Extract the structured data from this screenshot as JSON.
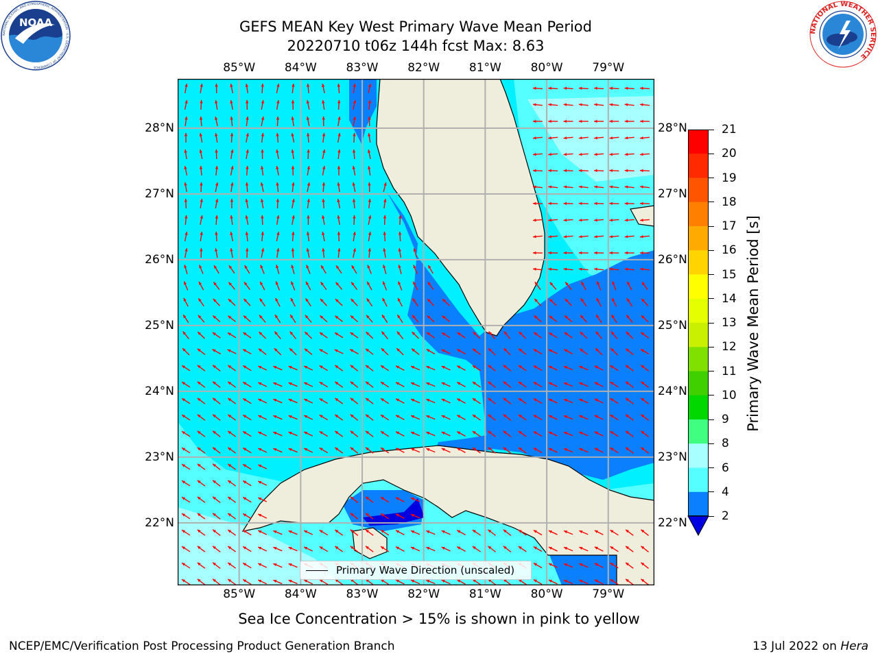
{
  "title": {
    "line1": "GEFS MEAN Key West Primary Wave Mean Period",
    "line2": "20220710 t06z 144h fcst   Max: 8.63"
  },
  "logos": {
    "left": {
      "text": "NOAA",
      "ring": "NATIONAL OCEANIC AND ATMOSPHERIC ADMINISTRATION · U.S. DEPARTMENT OF COMMERCE"
    },
    "right": {
      "ring": "NATIONAL WEATHER SERVICE"
    }
  },
  "map": {
    "lon_labels": [
      "85°W",
      "84°W",
      "83°W",
      "82°W",
      "81°W",
      "80°W",
      "79°W"
    ],
    "lat_labels": [
      "28°N",
      "27°N",
      "26°N",
      "25°N",
      "24°N",
      "23°N",
      "22°N"
    ],
    "lon_range": [
      -86.0,
      -78.25
    ],
    "lat_range": [
      21.05,
      28.75
    ],
    "colors": {
      "land": "#efeedd",
      "band_2_4": "#0a80ff",
      "band_4_6": "#00f0ff",
      "band_6_8": "#56ffff",
      "band_8_9": "#a8ffff",
      "below_2": "#0000e0",
      "arrows": "#ff0000",
      "grid": "#b0b0b0"
    },
    "legend_label": "Primary Wave Direction (unscaled)"
  },
  "colorbar": {
    "label": "Primary Wave Mean Period [s]",
    "ticks": [
      "21",
      "20",
      "19",
      "18",
      "17",
      "16",
      "15",
      "14",
      "13",
      "12",
      "11",
      "10",
      "9",
      "8",
      "6",
      "4",
      "2"
    ],
    "colors_top_to_bottom": [
      "#ff0000",
      "#ff2a00",
      "#ff5500",
      "#ff8000",
      "#ffaa00",
      "#ffd400",
      "#ffff00",
      "#e6ff00",
      "#c8f000",
      "#80e000",
      "#40d000",
      "#00d800",
      "#40ff80",
      "#a8ffff",
      "#56ffff",
      "#00f0ff",
      "#0a80ff"
    ],
    "extend_color": "#0000e0"
  },
  "footer": {
    "sea_ice": "Sea Ice Concentration > 15% is shown in pink to yellow",
    "left": "NCEP/EMC/Verification Post Processing Product Generation Branch",
    "right_date": "13 Jul 2022 on ",
    "right_host": "Hera"
  }
}
